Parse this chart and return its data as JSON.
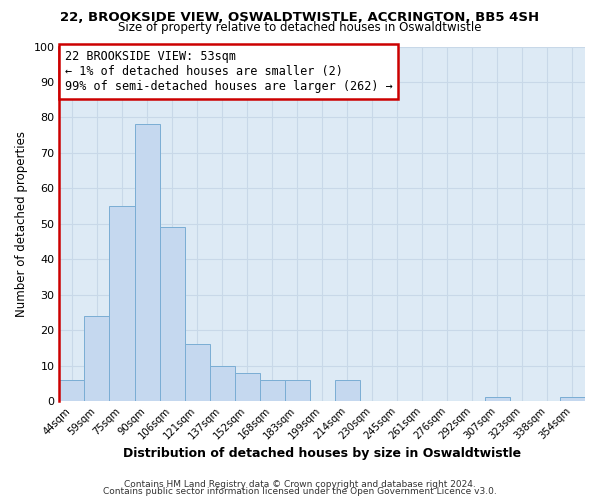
{
  "title_line1": "22, BROOKSIDE VIEW, OSWALDTWISTLE, ACCRINGTON, BB5 4SH",
  "title_line2": "Size of property relative to detached houses in Oswaldtwistle",
  "xlabel": "Distribution of detached houses by size in Oswaldtwistle",
  "ylabel": "Number of detached properties",
  "bar_labels": [
    "44sqm",
    "59sqm",
    "75sqm",
    "90sqm",
    "106sqm",
    "121sqm",
    "137sqm",
    "152sqm",
    "168sqm",
    "183sqm",
    "199sqm",
    "214sqm",
    "230sqm",
    "245sqm",
    "261sqm",
    "276sqm",
    "292sqm",
    "307sqm",
    "323sqm",
    "338sqm",
    "354sqm"
  ],
  "bar_heights": [
    6,
    24,
    55,
    78,
    49,
    16,
    10,
    8,
    6,
    6,
    0,
    6,
    0,
    0,
    0,
    0,
    0,
    1,
    0,
    0,
    1
  ],
  "bar_color": "#c5d8ef",
  "bar_edge_color": "#7aadd4",
  "ylim": [
    0,
    100
  ],
  "yticks": [
    0,
    10,
    20,
    30,
    40,
    50,
    60,
    70,
    80,
    90,
    100
  ],
  "annotation_line1": "22 BROOKSIDE VIEW: 53sqm",
  "annotation_line2": "← 1% of detached houses are smaller (2)",
  "annotation_line3": "99% of semi-detached houses are larger (262) →",
  "annotation_box_color": "#ffffff",
  "annotation_box_edge_color": "#cc0000",
  "property_line_color": "#cc0000",
  "footer_line1": "Contains HM Land Registry data © Crown copyright and database right 2024.",
  "footer_line2": "Contains public sector information licensed under the Open Government Licence v3.0.",
  "grid_color": "#c8d8e8",
  "background_color": "#ddeaf5",
  "fig_bg": "#ffffff"
}
